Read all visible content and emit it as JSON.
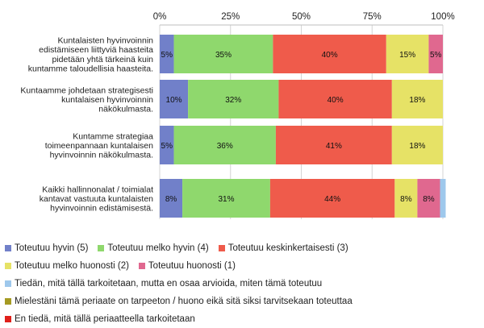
{
  "chart_data": {
    "type": "bar",
    "orientation": "horizontal",
    "stacked": true,
    "percent": true,
    "xlim": [
      0,
      100
    ],
    "x_ticks": [
      "0%",
      "25%",
      "50%",
      "75%",
      "100%"
    ],
    "x_tick_values": [
      0,
      25,
      50,
      75,
      100
    ],
    "grid": true,
    "legend_position": "bottom",
    "categories": [
      [
        "Kuntalaisten hyvinvoinnin",
        "edistämiseen liittyviä haasteita",
        "pidetään yhtä tärkeinä kuin",
        "kuntamme taloudellisia haasteita."
      ],
      [
        "Kuntaamme johdetaan strategisesti",
        "kuntalaisen hyvinvoinnin",
        "näkökulmasta."
      ],
      [
        "Kuntamme strategiaa",
        "toimeenpannaan kuntalaisen",
        "hyvinvoinnin näkökulmasta."
      ],
      [
        "Kaikki hallinnonalat / toimialat",
        "kantavat vastuuta kuntalaisten",
        "hyvinvoinnin edistämisestä."
      ]
    ],
    "series": [
      {
        "name": "Toteutuu hyvin (5)",
        "color": "#7180c9",
        "values": [
          5,
          10,
          5,
          8
        ]
      },
      {
        "name": "Toteutuu melko hyvin (4)",
        "color": "#8fd86d",
        "values": [
          35,
          32,
          36,
          31
        ]
      },
      {
        "name": "Toteutuu keskinkertaisesti (3)",
        "color": "#ef5b4b",
        "values": [
          40,
          40,
          41,
          44
        ]
      },
      {
        "name": "Toteutuu melko huonosti (2)",
        "color": "#e6e266",
        "values": [
          15,
          18,
          18,
          8
        ]
      },
      {
        "name": "Toteutuu huonosti (1)",
        "color": "#e0688f",
        "values": [
          5,
          0,
          0,
          8
        ]
      },
      {
        "name": "Tiedän, mitä tällä tarkoitetaan, mutta en osaa arvioida, miten tämä toteutuu",
        "color": "#9ec8ec",
        "values": [
          0,
          0,
          0,
          2
        ]
      },
      {
        "name": "Mielestäni tämä periaate on tarpeeton / huono eikä sitä siksi tarvitsekaan toteuttaa",
        "color": "#a59a22",
        "values": [
          0,
          0,
          0,
          0
        ]
      },
      {
        "name": "En tiedä, mitä tällä periaatteella tarkoitetaan",
        "color": "#e0201b",
        "values": [
          0,
          0,
          0,
          0
        ]
      }
    ],
    "data_labels": [
      [
        "5%",
        "35%",
        "40%",
        "15%",
        "5%",
        "",
        "",
        ""
      ],
      [
        "10%",
        "32%",
        "40%",
        "18%",
        "",
        "",
        "",
        ""
      ],
      [
        "5%",
        "36%",
        "41%",
        "18%",
        "",
        "",
        "",
        ""
      ],
      [
        "8%",
        "31%",
        "44%",
        "8%",
        "8%",
        "",
        "",
        ""
      ]
    ]
  },
  "legend_rows": [
    [
      0,
      1,
      2
    ],
    [
      3,
      4
    ],
    [
      5
    ],
    [
      6
    ],
    [
      7
    ]
  ]
}
